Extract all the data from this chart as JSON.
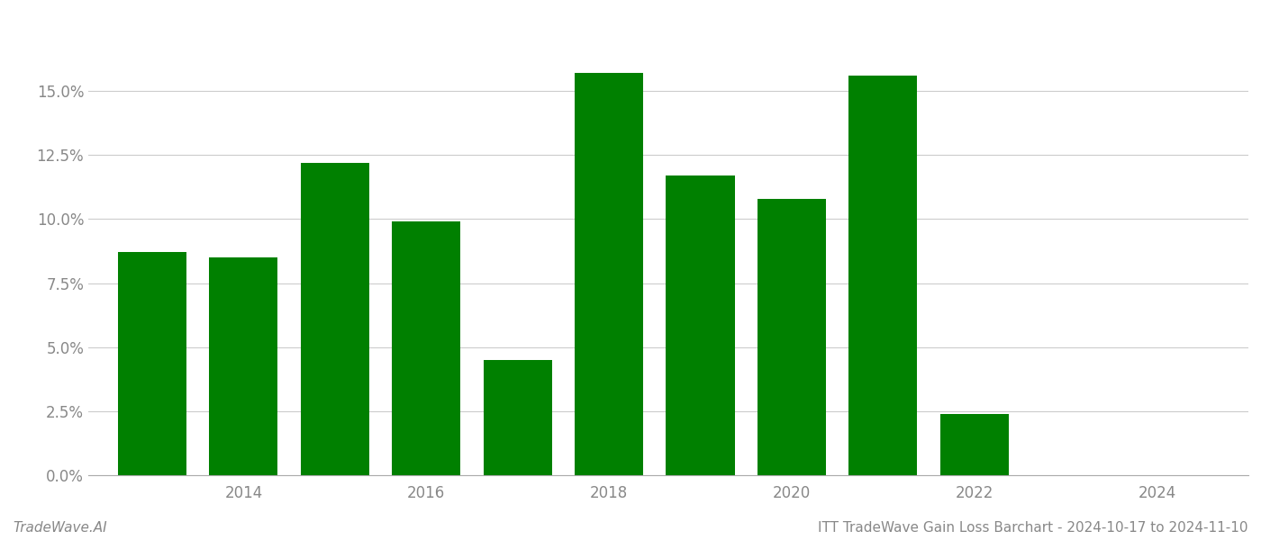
{
  "years": [
    2013,
    2014,
    2015,
    2016,
    2017,
    2018,
    2019,
    2020,
    2021,
    2022,
    2023
  ],
  "values": [
    0.087,
    0.085,
    0.122,
    0.099,
    0.045,
    0.157,
    0.117,
    0.108,
    0.156,
    0.024,
    0.0
  ],
  "bar_color": "#008000",
  "background_color": "#ffffff",
  "title": "ITT TradeWave Gain Loss Barchart - 2024-10-17 to 2024-11-10",
  "watermark": "TradeWave.AI",
  "ylim": [
    0,
    0.175
  ],
  "yticks": [
    0.0,
    0.025,
    0.05,
    0.075,
    0.1,
    0.125,
    0.15
  ],
  "xtick_positions": [
    2014,
    2016,
    2018,
    2020,
    2022,
    2024
  ],
  "xlim_left": 2012.3,
  "xlim_right": 2025.0,
  "grid_color": "#cccccc",
  "title_fontsize": 11,
  "watermark_fontsize": 11,
  "axis_label_color": "#888888",
  "bar_width": 0.75
}
